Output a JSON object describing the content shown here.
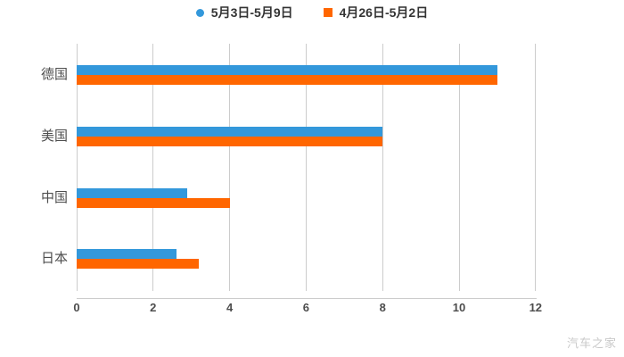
{
  "chart_data": {
    "type": "bar",
    "orientation": "horizontal",
    "title": "",
    "xlabel": "",
    "ylabel": "",
    "categories": [
      "德国",
      "美国",
      "中国",
      "日本"
    ],
    "series": [
      {
        "name": "5月3日-5月9日",
        "color": "#3398DB",
        "marker": "circle",
        "values": [
          11,
          8,
          2.9,
          2.6
        ]
      },
      {
        "name": "4月26日-5月2日",
        "color": "#FF6600",
        "marker": "square",
        "values": [
          11,
          8,
          4.0,
          3.2
        ]
      }
    ],
    "xlim": [
      0,
      12
    ],
    "x_ticks": [
      0,
      2,
      4,
      6,
      8,
      10,
      12
    ],
    "grid": true,
    "legend_position": "top-center"
  },
  "watermark": {
    "text": "汽车之家"
  },
  "colors": {
    "background": "#FFFFFF",
    "grid_line": "#CCCCCC",
    "axis_line": "#CCCCCC",
    "tick_label": "#4D4D4D",
    "category_label": "#4D4D4D",
    "legend_text": "#333333",
    "watermark_text": "#C9C9C9",
    "series_blue": "#3398DB",
    "series_orange": "#FF6600"
  }
}
